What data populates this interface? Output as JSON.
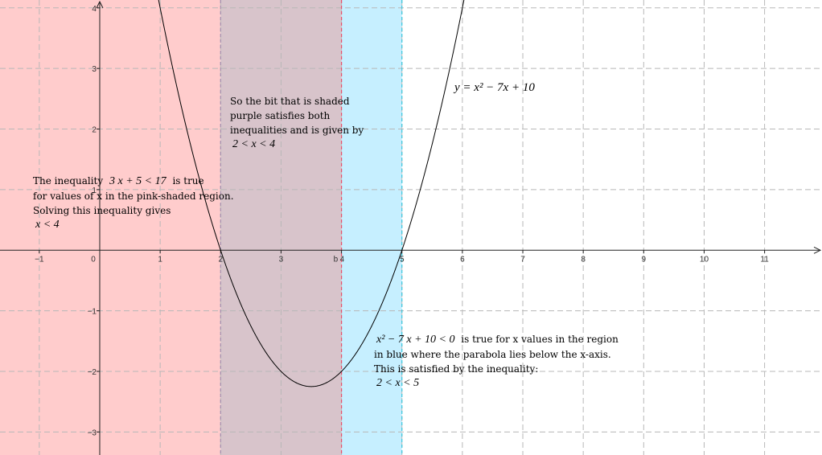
{
  "chart_data": {
    "type": "line",
    "xlim": [
      -1.65,
      11.95
    ],
    "ylim": [
      -3.38,
      4.13
    ],
    "grid": true,
    "x_ticks": [
      -1,
      0,
      1,
      2,
      3,
      4,
      5,
      6,
      7,
      8,
      9,
      10,
      11
    ],
    "x_tick_labels": [
      "−1",
      "0",
      "1",
      "2",
      "3",
      "",
      "5",
      "6",
      "7",
      "8",
      "9",
      "10",
      "11"
    ],
    "y_ticks": [
      -3,
      -2,
      -1,
      1,
      2,
      3,
      4
    ],
    "y_tick_labels": [
      "−3",
      "−2",
      "−1",
      "1",
      "2",
      "3",
      "4"
    ],
    "series": [
      {
        "function": "y = x^2 - 7x + 10",
        "coefficients": [
          1,
          -7,
          10
        ],
        "color": "#000000"
      }
    ],
    "regions": [
      {
        "x_from": null,
        "x_to": 4,
        "color": "#ffcccc"
      },
      {
        "x_from": 2,
        "x_to": 5,
        "color": "#c6efff"
      },
      {
        "x_from": 2,
        "x_to": 4,
        "color": "#d8c4cb"
      }
    ],
    "vlines": [
      {
        "x": 2,
        "color": "#a090b0"
      },
      {
        "x": 4,
        "color": "#e8506a"
      },
      {
        "x": 5,
        "color": "#39c6dd"
      }
    ],
    "point_label": {
      "text": "b",
      "x": 4,
      "color": "#e84060"
    },
    "point_tick_label": "4"
  },
  "annotations": {
    "curve_label": "y = x² − 7x + 10",
    "purple_note": {
      "line1": "So the bit that is shaded",
      "line2": "purple satisfies both",
      "line3": "inequalities and is given by",
      "math": "2 < x < 4"
    },
    "pink_note": {
      "line1_prefix": "The inequality",
      "line1_math": "3 x + 5 < 17",
      "line1_suffix": "is true",
      "line2": "for values of x in the pink-shaded region.",
      "line3": "Solving this inequality gives",
      "math": "x < 4"
    },
    "blue_note": {
      "line1_math": "x² − 7 x + 10 < 0",
      "line1_suffix": "is true for x values in the region",
      "line2": "in blue where the parabola lies below the x-axis.",
      "line3": "This is satisfied by the inequality:",
      "math": "2 < x < 5"
    }
  }
}
